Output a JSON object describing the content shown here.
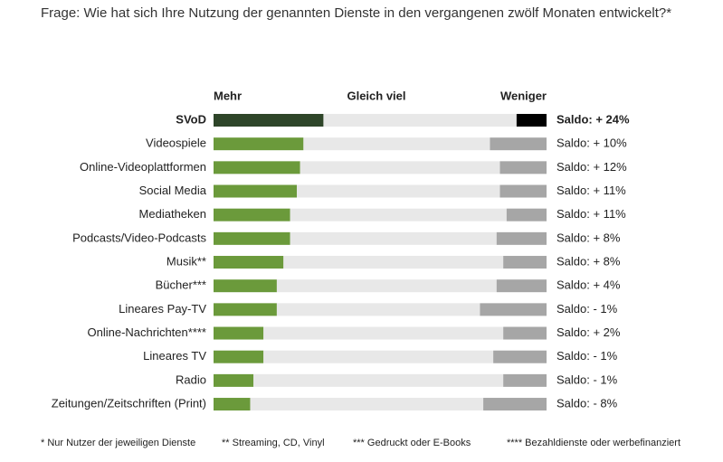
{
  "chart_data": {
    "type": "stacked-bar-horizontal",
    "title": "Frage: Wie hat sich Ihre Nutzung der genannten Dienste in den vergangenen zwölf Monaten entwickelt?*",
    "categories": [
      "SVoD",
      "Videospiele",
      "Online-Videoplattformen",
      "Social Media",
      "Mediatheken",
      "Podcasts/Video-Podcasts",
      "Musik**",
      "Bücher***",
      "Lineares Pay-TV",
      "Online-Nachrichten****",
      "Lineares TV",
      "Radio",
      "Zeitungen/Zeitschriften (Print)"
    ],
    "series": [
      {
        "name": "Mehr",
        "color": "#6b9a3b",
        "colors": [
          "#2e4529",
          "#6b9a3b",
          "#6b9a3b",
          "#6b9a3b",
          "#6b9a3b",
          "#6b9a3b",
          "#6b9a3b",
          "#6b9a3b",
          "#6b9a3b",
          "#6b9a3b",
          "#6b9a3b",
          "#6b9a3b",
          "#6b9a3b"
        ],
        "values": [
          33,
          27,
          26,
          25,
          23,
          23,
          21,
          19,
          19,
          15,
          15,
          12,
          11
        ]
      },
      {
        "name": "Gleich viel",
        "color": "#e8e8e8",
        "values": [
          58,
          56,
          60,
          61,
          65,
          62,
          66,
          66,
          61,
          72,
          69,
          75,
          70
        ]
      },
      {
        "name": "Weniger",
        "color": "#a6a6a6",
        "colors": [
          "#000000",
          "#a6a6a6",
          "#a6a6a6",
          "#a6a6a6",
          "#a6a6a6",
          "#a6a6a6",
          "#a6a6a6",
          "#a6a6a6",
          "#a6a6a6",
          "#a6a6a6",
          "#a6a6a6",
          "#a6a6a6",
          "#a6a6a6"
        ],
        "values": [
          9,
          17,
          14,
          14,
          12,
          15,
          13,
          15,
          20,
          13,
          16,
          13,
          19
        ]
      }
    ],
    "saldo_labels": [
      "Saldo: + 24%",
      "Saldo: + 10%",
      "Saldo: + 12%",
      "Saldo: + 11%",
      "Saldo: + 11%",
      "Saldo: + 8%",
      "Saldo: + 8%",
      "Saldo: + 4%",
      "Saldo: - 1%",
      "Saldo: + 2%",
      "Saldo: - 1%",
      "Saldo: - 1%",
      "Saldo: - 8%"
    ],
    "saldo_colors": {
      "positive": "#6b9a3b",
      "negative": "#c4532a"
    },
    "footnotes": [
      "* Nur Nutzer der jeweiligen Dienste",
      "** Streaming, CD, Vinyl",
      "*** Gedruckt oder E-Books",
      "**** Bezahldienste oder werbefinanziert"
    ]
  }
}
